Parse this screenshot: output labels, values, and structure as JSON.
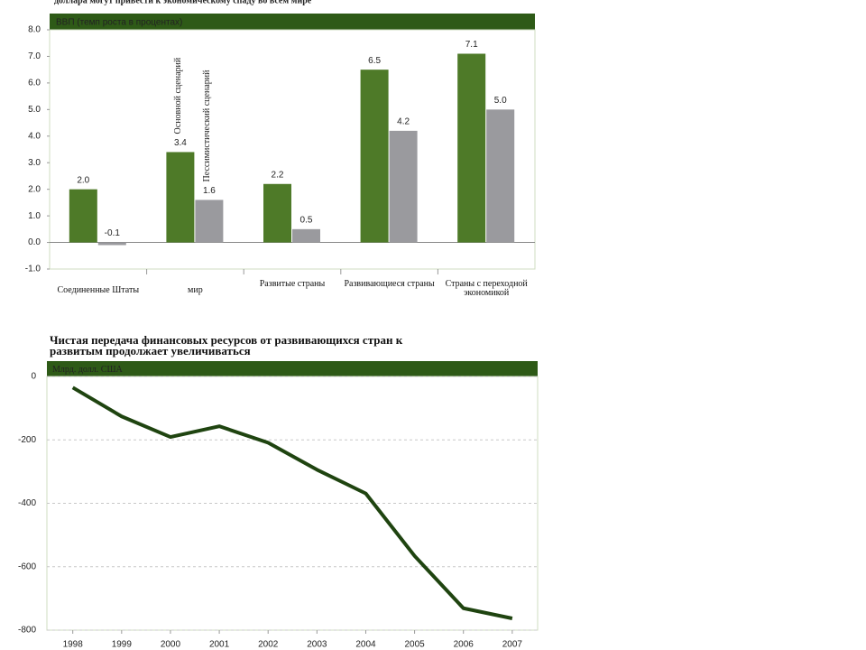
{
  "chart_data": [
    {
      "type": "bar",
      "title": "доллара могут привести к экономическому спаду во всем мире",
      "header": "ВВП (темп роста в процентах)",
      "categories": [
        "Соединенные Штаты",
        "мир",
        "Развитые страны",
        "Развивающиеся страны",
        "Страны с переходной экономикой"
      ],
      "series": [
        {
          "name": "Основной сценарий",
          "color": "#4e7a28",
          "values": [
            2.0,
            3.4,
            2.2,
            6.5,
            7.1
          ],
          "value_labels": [
            "2.0",
            "3.4",
            "2.2",
            "6.5",
            "7.1"
          ]
        },
        {
          "name": "Пессимистический сценарий",
          "color": "#9a9a9e",
          "values": [
            -0.1,
            1.6,
            0.5,
            4.2,
            5.0
          ],
          "value_labels": [
            "-0.1",
            "1.6",
            "0.5",
            "4.2",
            "5.0"
          ]
        }
      ],
      "ylim": [
        -1,
        8
      ],
      "yticks": [
        {
          "value": -1,
          "label": "-1.0"
        },
        {
          "value": 0,
          "label": "0.0"
        },
        {
          "value": 1,
          "label": "1.0"
        },
        {
          "value": 2,
          "label": "2.0"
        },
        {
          "value": 3,
          "label": "3.0"
        },
        {
          "value": 4,
          "label": "4.0"
        },
        {
          "value": 5,
          "label": "5.0"
        },
        {
          "value": 6,
          "label": "6.0"
        },
        {
          "value": 7,
          "label": "7.0"
        },
        {
          "value": 8,
          "label": "8.0"
        }
      ],
      "grid": false
    },
    {
      "type": "line",
      "title": "Чистая передача финансовых ресурсов от развивающихся стран к развитым продолжает увеличиваться",
      "header": "Млрд. долл. США",
      "x": [
        1998,
        1999,
        2000,
        2001,
        2002,
        2003,
        2004,
        2005,
        2006,
        2007
      ],
      "series": [
        {
          "name": "Чистая передача",
          "color": "#1f4410",
          "values": [
            -35,
            -126,
            -191,
            -157,
            -209,
            -294,
            -369,
            -566,
            -731,
            -763
          ]
        }
      ],
      "xlim": [
        1997.47,
        2007.52
      ],
      "xticks": [
        1998,
        1999,
        2000,
        2001,
        2002,
        2003,
        2004,
        2005,
        2006,
        2007
      ],
      "ylim": [
        -800,
        0
      ],
      "yticks": [
        -800,
        -600,
        -400,
        -200,
        0
      ],
      "grid": true
    }
  ]
}
